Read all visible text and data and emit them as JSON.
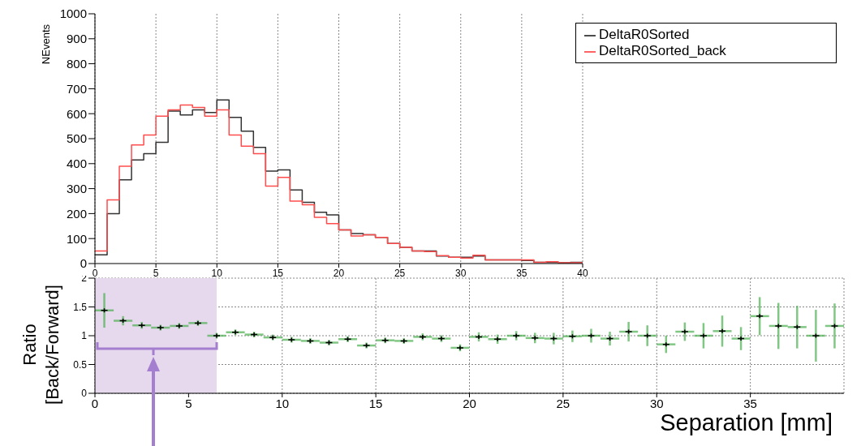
{
  "chart_data": [
    {
      "type": "histogram",
      "ylabel": "NEvents",
      "bins": [
        0,
        1,
        2,
        3,
        4,
        5,
        6,
        7,
        8,
        9,
        10,
        11,
        12,
        13,
        14,
        15,
        16,
        17,
        18,
        19,
        20,
        21,
        22,
        23,
        24,
        25,
        26,
        27,
        28,
        29,
        30,
        31,
        32,
        33,
        34,
        35,
        36,
        37,
        38,
        39,
        40
      ],
      "series": [
        {
          "name": "DeltaR0Sorted",
          "color": "#333333",
          "values": [
            35,
            200,
            335,
            415,
            440,
            485,
            610,
            595,
            615,
            605,
            655,
            585,
            530,
            465,
            370,
            375,
            295,
            245,
            205,
            195,
            135,
            120,
            115,
            105,
            80,
            65,
            50,
            50,
            30,
            25,
            25,
            30,
            15,
            15,
            15,
            12,
            5,
            5,
            3,
            5
          ]
        },
        {
          "name": "DeltaR0Sorted_back",
          "color": "#ff4d4d",
          "values": [
            50,
            255,
            390,
            475,
            515,
            590,
            615,
            635,
            625,
            590,
            615,
            515,
            470,
            440,
            310,
            345,
            250,
            235,
            185,
            160,
            135,
            110,
            115,
            105,
            80,
            65,
            50,
            48,
            32,
            25,
            22,
            33,
            15,
            15,
            15,
            15,
            5,
            7,
            3,
            3
          ]
        }
      ],
      "xlim": [
        0,
        40
      ],
      "xticks": [
        0,
        5,
        10,
        15,
        20,
        25,
        30,
        35,
        40
      ],
      "ylim": [
        0,
        1000
      ],
      "yticks": [
        0,
        100,
        200,
        300,
        400,
        500,
        600,
        700,
        800,
        900,
        1000
      ],
      "grid": "x",
      "legend": "top right"
    },
    {
      "type": "scatter",
      "xlabel": "Separation [mm]",
      "ylabel": "Ratio\n[Back/Forward]",
      "x": [
        0.5,
        1.5,
        2.5,
        3.5,
        4.5,
        5.5,
        6.5,
        7.5,
        8.5,
        9.5,
        10.5,
        11.5,
        12.5,
        13.5,
        14.5,
        15.5,
        16.5,
        17.5,
        18.5,
        19.5,
        20.5,
        21.5,
        22.5,
        23.5,
        24.5,
        25.5,
        26.5,
        27.5,
        28.5,
        29.5,
        30.5,
        31.5,
        32.5,
        33.5,
        34.5,
        35.5,
        36.5,
        37.5,
        38.5,
        39.5
      ],
      "series": [
        {
          "color": "#000000",
          "values": [
            1.44,
            1.26,
            1.18,
            1.14,
            1.17,
            1.22,
            1.0,
            1.06,
            1.02,
            0.97,
            0.93,
            0.91,
            0.88,
            0.94,
            0.83,
            0.92,
            0.91,
            0.98,
            0.95,
            0.79,
            0.98,
            0.94,
            1.0,
            0.96,
            0.95,
            0.99,
            1.0,
            0.95,
            1.07,
            1.0,
            0.85,
            1.07,
            1.0,
            1.08,
            0.95,
            1.34,
            1.17,
            1.15,
            1.0,
            1.17
          ],
          "errors": [
            0.3,
            0.08,
            0.06,
            0.05,
            0.05,
            0.05,
            0.05,
            0.05,
            0.05,
            0.05,
            0.05,
            0.05,
            0.05,
            0.05,
            0.05,
            0.05,
            0.05,
            0.06,
            0.06,
            0.06,
            0.08,
            0.08,
            0.08,
            0.09,
            0.1,
            0.1,
            0.12,
            0.12,
            0.17,
            0.18,
            0.15,
            0.16,
            0.22,
            0.27,
            0.2,
            0.33,
            0.4,
            0.37,
            0.45,
            0.39
          ],
          "xerrors": [
            0.5,
            0.5,
            0.5,
            0.5,
            0.5,
            0.5,
            0.5,
            0.5,
            0.5,
            0.5,
            0.5,
            0.5,
            0.5,
            0.5,
            0.5,
            0.5,
            0.5,
            0.5,
            0.5,
            0.5,
            0.5,
            0.5,
            0.5,
            0.5,
            0.5,
            0.5,
            0.5,
            0.5,
            0.5,
            0.5,
            0.5,
            0.5,
            0.5,
            0.5,
            0.5,
            0.5,
            0.5,
            0.5,
            0.5,
            0.5
          ]
        }
      ],
      "marker": "cross",
      "xlim": [
        0,
        40
      ],
      "xticks": [
        0,
        5,
        10,
        15,
        20,
        25,
        30,
        35
      ],
      "ylim": [
        0,
        2
      ],
      "yticks": [
        0,
        0.5,
        1,
        1.5,
        2
      ],
      "grid": true,
      "bands": [
        {
          "axis": "x",
          "from": 0,
          "to": 6.5,
          "color": "#e6d9ee"
        }
      ]
    }
  ]
}
